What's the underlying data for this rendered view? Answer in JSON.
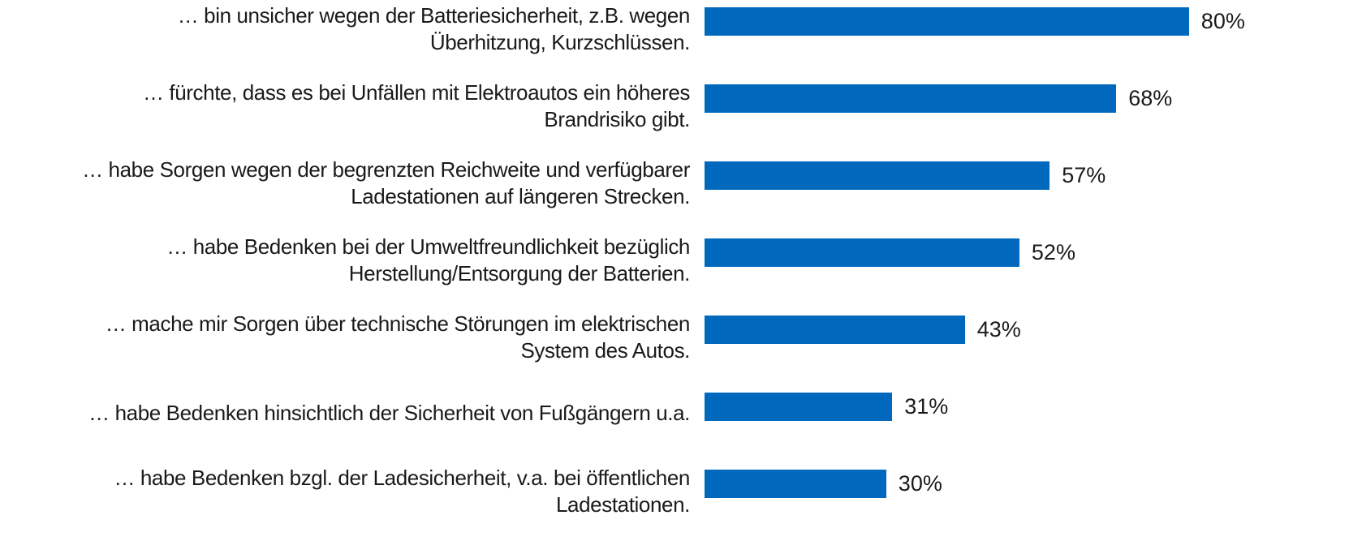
{
  "chart_data": {
    "type": "bar",
    "orientation": "horizontal",
    "categories": [
      "… bin unsicher wegen der Batteriesicherheit, z.B. wegen\nÜberhitzung, Kurzschlüssen.",
      "… fürchte, dass es bei Unfällen mit Elektroautos ein höheres\nBrandrisiko gibt.",
      "… habe Sorgen wegen der begrenzten Reichweite und verfügbarer\nLadestationen auf längeren Strecken.",
      "… habe Bedenken bei der Umweltfreundlichkeit bezüglich\nHerstellung/Entsorgung der Batterien.",
      "… mache mir Sorgen über technische Störungen im elektrischen\nSystem des Autos.",
      "… habe Bedenken hinsichtlich der Sicherheit von Fußgängern u.a.",
      "… habe Bedenken bzgl. der Ladesicherheit, v.a. bei öffentlichen\nLadestationen."
    ],
    "values": [
      80,
      68,
      57,
      52,
      43,
      31,
      30
    ],
    "value_labels": [
      "80%",
      "68%",
      "57%",
      "52%",
      "43%",
      "31%",
      "30%"
    ],
    "color": "#0069be"
  }
}
